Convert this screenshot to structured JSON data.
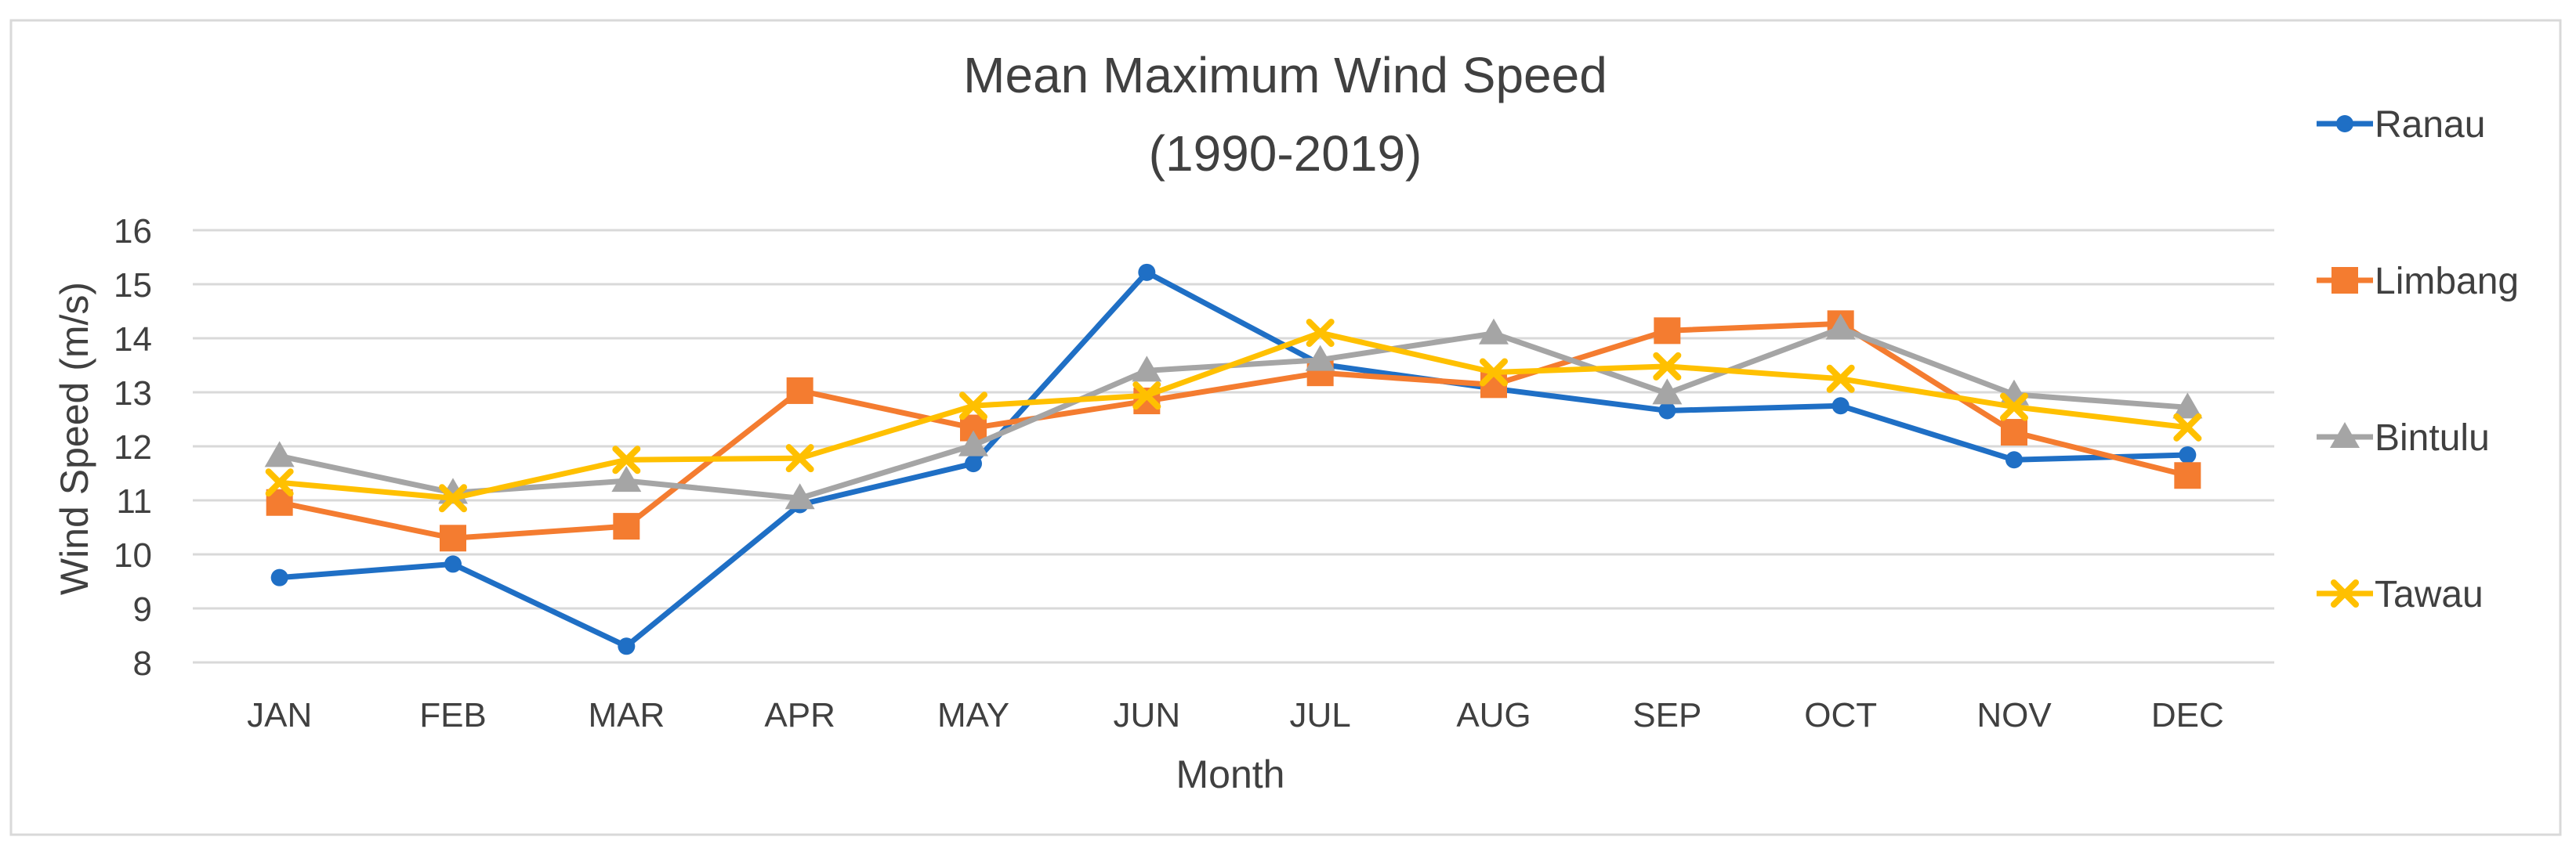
{
  "chart_data": {
    "type": "line",
    "title": "Mean Maximum Wind Speed",
    "subtitle": "(1990-2019)",
    "xlabel": "Month",
    "ylabel": "Wind Speed (m/s)",
    "ylim": [
      8,
      16
    ],
    "yticks": [
      "8",
      "9",
      "10",
      "11",
      "12",
      "13",
      "14",
      "15",
      "16"
    ],
    "grid": true,
    "legend_position": "right",
    "categories": [
      "JAN",
      "FEB",
      "MAR",
      "APR",
      "MAY",
      "JUN",
      "JUL",
      "AUG",
      "SEP",
      "OCT",
      "NOV",
      "DEC"
    ],
    "series": [
      {
        "name": "Ranau",
        "color": "#1F6FC5",
        "marker": "circle",
        "values": [
          9.57,
          9.82,
          8.3,
          10.92,
          11.68,
          15.22,
          13.52,
          13.07,
          12.66,
          12.75,
          11.75,
          11.84
        ]
      },
      {
        "name": "Limbang",
        "color": "#F47C30",
        "marker": "square",
        "values": [
          10.96,
          10.3,
          10.52,
          13.03,
          12.34,
          12.84,
          13.36,
          13.14,
          14.14,
          14.27,
          12.26,
          11.46
        ]
      },
      {
        "name": "Bintulu",
        "color": "#A5A5A5",
        "marker": "triangle",
        "values": [
          11.82,
          11.14,
          11.36,
          11.04,
          12.02,
          13.4,
          13.6,
          14.09,
          12.98,
          14.18,
          12.96,
          12.72
        ]
      },
      {
        "name": "Tawau",
        "color": "#FFC000",
        "marker": "cross",
        "values": [
          11.33,
          11.04,
          11.75,
          11.78,
          12.75,
          12.94,
          14.1,
          13.37,
          13.48,
          13.25,
          12.73,
          12.35
        ]
      }
    ]
  }
}
